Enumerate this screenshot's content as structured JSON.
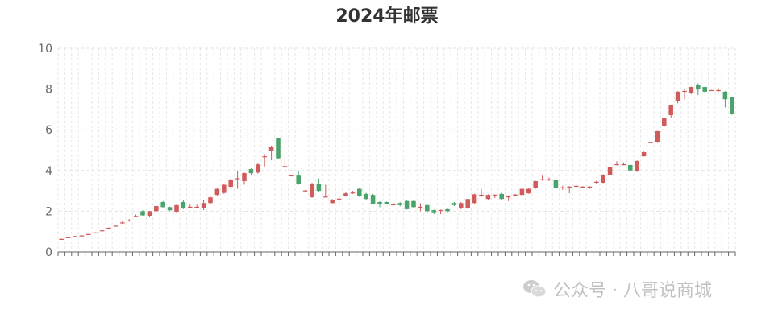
{
  "chart_data": {
    "type": "candlestick",
    "title": "2024年邮票",
    "ylim": [
      0,
      10
    ],
    "yticks": [
      0,
      2,
      4,
      6,
      8,
      10
    ],
    "grid": true,
    "ohlc_order": [
      "open",
      "close",
      "low",
      "high"
    ],
    "up_color": "#d05b5b",
    "down_color": "#4aa36b",
    "candles": [
      [
        0.62,
        0.64,
        0.6,
        0.66
      ],
      [
        0.7,
        0.72,
        0.7,
        0.74
      ],
      [
        0.76,
        0.78,
        0.75,
        0.79
      ],
      [
        0.79,
        0.81,
        0.78,
        0.82
      ],
      [
        0.86,
        0.88,
        0.85,
        0.89
      ],
      [
        0.94,
        0.96,
        0.93,
        0.97
      ],
      [
        1.03,
        1.06,
        1.02,
        1.07
      ],
      [
        1.16,
        1.19,
        1.15,
        1.2
      ],
      [
        1.26,
        1.29,
        1.25,
        1.3
      ],
      [
        1.42,
        1.45,
        1.38,
        1.5
      ],
      [
        1.52,
        1.55,
        1.48,
        1.62
      ],
      [
        1.74,
        1.77,
        1.7,
        1.84
      ],
      [
        2.0,
        1.8,
        1.78,
        2.05
      ],
      [
        1.78,
        2.0,
        1.7,
        2.02
      ],
      [
        2.0,
        2.25,
        1.98,
        2.28
      ],
      [
        2.45,
        2.2,
        2.18,
        2.5
      ],
      [
        2.2,
        2.05,
        2.0,
        2.22
      ],
      [
        1.98,
        2.3,
        1.9,
        2.32
      ],
      [
        2.45,
        2.15,
        2.1,
        2.55
      ],
      [
        2.2,
        2.22,
        2.15,
        2.35
      ],
      [
        2.2,
        2.22,
        2.15,
        2.32
      ],
      [
        2.15,
        2.4,
        2.05,
        2.55
      ],
      [
        2.4,
        2.68,
        2.35,
        2.72
      ],
      [
        2.8,
        3.1,
        2.75,
        3.12
      ],
      [
        2.9,
        3.3,
        2.85,
        3.32
      ],
      [
        3.2,
        3.56,
        3.1,
        3.6
      ],
      [
        3.6,
        3.62,
        3.1,
        4.0
      ],
      [
        3.48,
        3.87,
        3.3,
        3.9
      ],
      [
        4.07,
        3.87,
        3.75,
        4.1
      ],
      [
        3.9,
        4.3,
        3.85,
        4.35
      ],
      [
        4.68,
        4.7,
        4.2,
        4.8
      ],
      [
        4.98,
        5.18,
        4.5,
        5.22
      ],
      [
        5.6,
        4.6,
        4.58,
        5.62
      ],
      [
        4.2,
        4.22,
        4.15,
        4.6
      ],
      [
        3.74,
        3.76,
        3.72,
        3.78
      ],
      [
        3.75,
        3.36,
        3.3,
        4.0
      ],
      [
        3.0,
        3.02,
        2.98,
        3.04
      ],
      [
        2.69,
        3.36,
        2.65,
        3.4
      ],
      [
        3.36,
        3.0,
        2.95,
        3.6
      ],
      [
        2.7,
        2.72,
        2.7,
        3.3
      ],
      [
        2.4,
        2.57,
        2.38,
        2.6
      ],
      [
        2.58,
        2.62,
        2.35,
        2.75
      ],
      [
        2.75,
        2.88,
        2.72,
        2.95
      ],
      [
        2.9,
        2.92,
        2.85,
        3.0
      ],
      [
        3.1,
        2.75,
        2.7,
        3.15
      ],
      [
        2.85,
        2.6,
        2.55,
        2.9
      ],
      [
        2.8,
        2.37,
        2.35,
        2.85
      ],
      [
        2.45,
        2.33,
        2.2,
        2.48
      ],
      [
        2.45,
        2.36,
        2.33,
        2.48
      ],
      [
        2.32,
        2.34,
        2.25,
        2.42
      ],
      [
        2.4,
        2.3,
        2.25,
        2.45
      ],
      [
        2.5,
        2.1,
        2.08,
        2.55
      ],
      [
        2.5,
        2.2,
        2.15,
        2.55
      ],
      [
        2.2,
        2.22,
        2.0,
        2.4
      ],
      [
        2.3,
        2.0,
        1.95,
        2.35
      ],
      [
        2.05,
        1.95,
        1.85,
        2.08
      ],
      [
        2.04,
        2.06,
        1.85,
        2.08
      ],
      [
        2.1,
        2.0,
        1.95,
        2.15
      ],
      [
        2.4,
        2.3,
        2.25,
        2.45
      ],
      [
        2.15,
        2.4,
        2.1,
        2.45
      ],
      [
        2.15,
        2.6,
        2.1,
        2.62
      ],
      [
        2.4,
        2.83,
        2.35,
        2.86
      ],
      [
        2.79,
        2.81,
        2.7,
        3.1
      ],
      [
        2.6,
        2.8,
        2.55,
        2.83
      ],
      [
        2.79,
        2.81,
        2.65,
        2.83
      ],
      [
        2.85,
        2.6,
        2.55,
        2.9
      ],
      [
        2.68,
        2.75,
        2.5,
        2.78
      ],
      [
        2.75,
        2.82,
        2.72,
        2.85
      ],
      [
        2.8,
        3.1,
        2.75,
        3.12
      ],
      [
        2.88,
        3.1,
        2.85,
        3.15
      ],
      [
        3.16,
        3.48,
        3.1,
        3.5
      ],
      [
        3.55,
        3.57,
        3.5,
        3.75
      ],
      [
        3.55,
        3.57,
        3.48,
        3.65
      ],
      [
        3.53,
        3.16,
        3.12,
        3.65
      ],
      [
        3.15,
        3.17,
        3.05,
        3.25
      ],
      [
        3.19,
        3.21,
        2.88,
        3.23
      ],
      [
        3.23,
        3.25,
        3.15,
        3.35
      ],
      [
        3.19,
        3.21,
        3.17,
        3.23
      ],
      [
        3.19,
        3.21,
        3.1,
        3.23
      ],
      [
        3.4,
        3.45,
        3.35,
        3.5
      ],
      [
        3.4,
        3.79,
        3.38,
        3.82
      ],
      [
        3.79,
        4.19,
        3.75,
        4.22
      ],
      [
        4.29,
        4.31,
        4.25,
        4.45
      ],
      [
        4.29,
        4.31,
        4.25,
        4.4
      ],
      [
        4.27,
        4.0,
        3.95,
        4.3
      ],
      [
        3.95,
        4.47,
        3.93,
        4.5
      ],
      [
        4.7,
        4.9,
        4.68,
        4.93
      ],
      [
        5.37,
        5.39,
        5.36,
        5.4
      ],
      [
        5.38,
        5.93,
        5.35,
        5.95
      ],
      [
        6.17,
        6.56,
        6.15,
        6.58
      ],
      [
        6.72,
        7.19,
        6.6,
        7.22
      ],
      [
        7.39,
        7.87,
        7.3,
        7.9
      ],
      [
        7.89,
        7.91,
        7.5,
        8.0
      ],
      [
        7.79,
        8.1,
        7.75,
        8.12
      ],
      [
        8.22,
        7.98,
        7.7,
        8.28
      ],
      [
        8.1,
        7.87,
        7.8,
        8.12
      ],
      [
        7.93,
        7.95,
        7.92,
        7.96
      ],
      [
        7.93,
        7.95,
        7.85,
        8.05
      ],
      [
        7.87,
        7.5,
        7.1,
        7.9
      ],
      [
        7.59,
        6.76,
        6.74,
        7.62
      ]
    ]
  },
  "watermark": {
    "text": "公众号 · 八哥说商城",
    "icon": "wechat-icon"
  }
}
